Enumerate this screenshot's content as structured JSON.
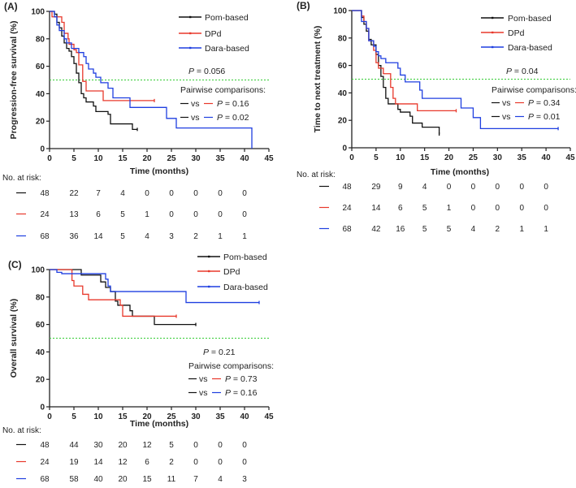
{
  "colors": {
    "pom": "#111111",
    "dpd": "#e8382b",
    "dara": "#1f3fe0",
    "median": "#33cc33"
  },
  "chart_data": [
    {
      "type": "line",
      "panel": "(A)",
      "ylabel": "Progression-free survival (%)",
      "xlabel": "Time (months)",
      "xlim": [
        0,
        45
      ],
      "ylim": [
        0,
        100
      ],
      "xticks": [
        "0",
        "5",
        "10",
        "15",
        "20",
        "25",
        "30",
        "35",
        "40",
        "45"
      ],
      "yticks": [
        "0",
        "20",
        "40",
        "60",
        "80",
        "100"
      ],
      "median_line": 50,
      "legend": [
        "Pom-based",
        "DPd",
        "Dara-based"
      ],
      "p_value": "= 0.056",
      "pairwise_title": "Pairwise comparisons:",
      "pairwise": [
        {
          "vs": "vs",
          "p": "= 0.16",
          "series": "dpd"
        },
        {
          "vs": "vs",
          "p": "= 0.02",
          "series": "dara"
        }
      ],
      "series": [
        {
          "name": "Pom-based",
          "key": "pom",
          "points": [
            [
              0,
              100
            ],
            [
              1,
              98
            ],
            [
              1.5,
              92
            ],
            [
              2,
              88
            ],
            [
              2.5,
              82
            ],
            [
              3,
              77
            ],
            [
              3.5,
              73
            ],
            [
              4,
              71
            ],
            [
              4.5,
              67
            ],
            [
              5,
              62
            ],
            [
              5.5,
              55
            ],
            [
              6,
              48
            ],
            [
              6.5,
              40
            ],
            [
              7,
              37
            ],
            [
              7.5,
              34
            ],
            [
              9,
              31
            ],
            [
              9.5,
              27
            ],
            [
              12,
              25
            ],
            [
              12.5,
              18
            ],
            [
              17,
              14
            ],
            [
              18,
              14
            ]
          ]
        },
        {
          "name": "DPd",
          "key": "dpd",
          "points": [
            [
              0,
              100
            ],
            [
              0.5,
              96
            ],
            [
              2,
              96
            ],
            [
              2.5,
              92
            ],
            [
              3,
              84
            ],
            [
              3.8,
              80
            ],
            [
              4,
              76
            ],
            [
              5,
              72
            ],
            [
              5.5,
              70
            ],
            [
              6,
              61
            ],
            [
              6.8,
              49
            ],
            [
              7.5,
              42
            ],
            [
              11,
              35
            ],
            [
              21.5,
              35
            ]
          ]
        },
        {
          "name": "Dara-based",
          "key": "dara",
          "points": [
            [
              0,
              100
            ],
            [
              1,
              96
            ],
            [
              1.5,
              90
            ],
            [
              2,
              86
            ],
            [
              3,
              80
            ],
            [
              3.5,
              77
            ],
            [
              4.5,
              73
            ],
            [
              6,
              70
            ],
            [
              7,
              67
            ],
            [
              7.5,
              62
            ],
            [
              8,
              58
            ],
            [
              9,
              55
            ],
            [
              9.5,
              52
            ],
            [
              10.5,
              48
            ],
            [
              12,
              44
            ],
            [
              13,
              37
            ],
            [
              16.5,
              30
            ],
            [
              24,
              22
            ],
            [
              26,
              15
            ],
            [
              41.5,
              15
            ],
            [
              41.5,
              0
            ]
          ]
        }
      ],
      "risk_title": "No. at risk:",
      "risk_times": [
        0,
        5,
        10,
        15,
        20,
        25,
        30,
        35,
        40
      ],
      "risk": [
        {
          "key": "pom",
          "values": [
            "48",
            "22",
            "7",
            "4",
            "0",
            "0",
            "0",
            "0",
            "0"
          ]
        },
        {
          "key": "dpd",
          "values": [
            "24",
            "13",
            "6",
            "5",
            "1",
            "0",
            "0",
            "0",
            "0"
          ]
        },
        {
          "key": "dara",
          "values": [
            "68",
            "36",
            "14",
            "5",
            "4",
            "3",
            "2",
            "1",
            "1"
          ]
        }
      ]
    },
    {
      "type": "line",
      "panel": "(B)",
      "ylabel": "Time to next treatment (%)",
      "xlabel": "Time (months)",
      "xlim": [
        0,
        45
      ],
      "ylim": [
        0,
        100
      ],
      "xticks": [
        "0",
        "5",
        "10",
        "15",
        "20",
        "25",
        "30",
        "35",
        "40",
        "45"
      ],
      "yticks": [
        "0",
        "20",
        "40",
        "60",
        "80",
        "100"
      ],
      "median_line": 50,
      "legend": [
        "Pom-based",
        "DPd",
        "Dara-based"
      ],
      "p_value": "= 0.04",
      "pairwise_title": "Pairwise comparisons:",
      "pairwise": [
        {
          "vs": "vs",
          "p": "= 0.34",
          "series": "dpd"
        },
        {
          "vs": "vs",
          "p": "= 0.01",
          "series": "dara"
        }
      ],
      "series": [
        {
          "name": "Pom-based",
          "key": "pom",
          "points": [
            [
              0,
              100
            ],
            [
              1.5,
              100
            ],
            [
              2,
              95
            ],
            [
              2.5,
              90
            ],
            [
              3,
              85
            ],
            [
              3.5,
              79
            ],
            [
              4,
              75
            ],
            [
              5,
              68
            ],
            [
              5.5,
              60
            ],
            [
              6,
              52
            ],
            [
              6.5,
              44
            ],
            [
              7,
              36
            ],
            [
              7.5,
              32
            ],
            [
              9.5,
              28
            ],
            [
              10,
              26
            ],
            [
              12,
              23
            ],
            [
              12.5,
              18
            ],
            [
              14.5,
              15
            ],
            [
              18,
              15
            ],
            [
              18,
              10
            ]
          ]
        },
        {
          "name": "DPd",
          "key": "dpd",
          "points": [
            [
              0,
              100
            ],
            [
              1.5,
              100
            ],
            [
              2,
              96
            ],
            [
              2.5,
              92
            ],
            [
              3,
              87
            ],
            [
              3.5,
              78
            ],
            [
              4.5,
              71
            ],
            [
              5,
              62
            ],
            [
              5.5,
              58
            ],
            [
              6.5,
              54
            ],
            [
              8,
              44
            ],
            [
              8.5,
              36
            ],
            [
              9,
              32
            ],
            [
              13.5,
              27
            ],
            [
              21.5,
              27
            ]
          ]
        },
        {
          "name": "Dara-based",
          "key": "dara",
          "points": [
            [
              0,
              100
            ],
            [
              1.5,
              100
            ],
            [
              2,
              92
            ],
            [
              3,
              87
            ],
            [
              3.5,
              78
            ],
            [
              4.5,
              74
            ],
            [
              5,
              70
            ],
            [
              5.5,
              67
            ],
            [
              6,
              65
            ],
            [
              7,
              62
            ],
            [
              9.5,
              58
            ],
            [
              10,
              53
            ],
            [
              11,
              48
            ],
            [
              14,
              42
            ],
            [
              14.5,
              36
            ],
            [
              22.5,
              29
            ],
            [
              25,
              22
            ],
            [
              26.5,
              14
            ],
            [
              42.5,
              14
            ]
          ]
        }
      ],
      "risk_title": "No. at risk:",
      "risk_times": [
        0,
        5,
        10,
        15,
        20,
        25,
        30,
        35,
        40
      ],
      "risk": [
        {
          "key": "pom",
          "values": [
            "48",
            "29",
            "9",
            "4",
            "0",
            "0",
            "0",
            "0",
            "0"
          ]
        },
        {
          "key": "dpd",
          "values": [
            "24",
            "14",
            "6",
            "5",
            "1",
            "0",
            "0",
            "0",
            "0"
          ]
        },
        {
          "key": "dara",
          "values": [
            "68",
            "42",
            "16",
            "5",
            "5",
            "4",
            "2",
            "1",
            "1"
          ]
        }
      ]
    },
    {
      "type": "line",
      "panel": "(C)",
      "ylabel": "Overall survival (%)",
      "xlabel": "Time (months)",
      "xlim": [
        0,
        45
      ],
      "ylim": [
        0,
        100
      ],
      "xticks": [
        "0",
        "5",
        "10",
        "15",
        "20",
        "25",
        "30",
        "35",
        "40",
        "45"
      ],
      "yticks": [
        "0",
        "20",
        "40",
        "60",
        "80",
        "100"
      ],
      "median_line": 50,
      "legend": [
        "Pom-based",
        "DPd",
        "Dara-based"
      ],
      "p_value": "= 0.21",
      "pairwise_title": "Pairwise comparisons:",
      "pairwise": [
        {
          "vs": "vs",
          "p": "= 0.73",
          "series": "dpd"
        },
        {
          "vs": "vs",
          "p": "= 0.16",
          "series": "dara"
        }
      ],
      "series": [
        {
          "name": "Pom-based",
          "key": "pom",
          "points": [
            [
              0,
              100
            ],
            [
              6.5,
              100
            ],
            [
              6.5,
              96
            ],
            [
              10,
              96
            ],
            [
              10.5,
              91
            ],
            [
              11.5,
              87
            ],
            [
              12.5,
              84
            ],
            [
              13.5,
              77
            ],
            [
              14,
              74
            ],
            [
              16.5,
              70
            ],
            [
              17,
              66
            ],
            [
              21.5,
              66
            ],
            [
              21.5,
              60
            ],
            [
              30,
              60
            ]
          ]
        },
        {
          "name": "DPd",
          "key": "dpd",
          "points": [
            [
              0,
              100
            ],
            [
              4.5,
              100
            ],
            [
              4.6,
              92
            ],
            [
              5,
              88
            ],
            [
              6.8,
              82
            ],
            [
              8,
              78
            ],
            [
              14.5,
              74
            ],
            [
              15,
              66
            ],
            [
              26,
              66
            ]
          ]
        },
        {
          "name": "Dara-based",
          "key": "dara",
          "points": [
            [
              0,
              100
            ],
            [
              1.2,
              100
            ],
            [
              1.5,
              98
            ],
            [
              2.5,
              97
            ],
            [
              9.5,
              97
            ],
            [
              11.5,
              93
            ],
            [
              12,
              88
            ],
            [
              12.5,
              84
            ],
            [
              28,
              84
            ],
            [
              28,
              76
            ],
            [
              43,
              76
            ]
          ]
        }
      ],
      "risk_title": "No. at risk:",
      "risk_times": [
        0,
        5,
        10,
        15,
        20,
        25,
        30,
        35,
        40
      ],
      "risk": [
        {
          "key": "pom",
          "values": [
            "48",
            "44",
            "30",
            "20",
            "12",
            "5",
            "0",
            "0",
            "0"
          ]
        },
        {
          "key": "dpd",
          "values": [
            "24",
            "19",
            "14",
            "12",
            "6",
            "2",
            "0",
            "0",
            "0"
          ]
        },
        {
          "key": "dara",
          "values": [
            "68",
            "58",
            "40",
            "20",
            "15",
            "11",
            "7",
            "4",
            "3"
          ]
        }
      ]
    }
  ]
}
